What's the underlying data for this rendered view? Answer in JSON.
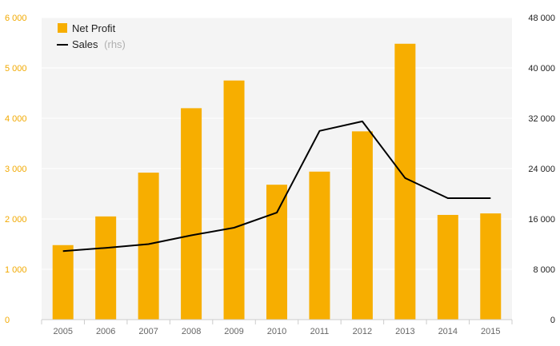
{
  "chart_data": {
    "type": "bar",
    "categories": [
      "2005",
      "2006",
      "2007",
      "2008",
      "2009",
      "2010",
      "2011",
      "2012",
      "2013",
      "2014",
      "2015"
    ],
    "series": [
      {
        "name": "Net Profit",
        "type": "bar",
        "axis": "left",
        "color": "#f7ae00",
        "values": [
          1480,
          2050,
          2920,
          4200,
          4750,
          2680,
          2940,
          3740,
          5480,
          2080,
          2110
        ]
      },
      {
        "name": "Sales",
        "name_suffix": "(rhs)",
        "type": "line",
        "axis": "right",
        "color": "#000000",
        "values": [
          10900,
          11400,
          12000,
          13400,
          14600,
          17000,
          30000,
          31500,
          22500,
          19300,
          19300
        ]
      }
    ],
    "y_left": {
      "min": 0,
      "max": 6000,
      "ticks": [
        0,
        1000,
        2000,
        3000,
        4000,
        5000,
        6000
      ],
      "tick_labels": [
        "0",
        "1 000",
        "2 000",
        "3 000",
        "4 000",
        "5 000",
        "6 000"
      ],
      "color": "#f2a900"
    },
    "y_right": {
      "min": 0,
      "max": 48000,
      "ticks": [
        0,
        8000,
        16000,
        24000,
        32000,
        40000,
        48000
      ],
      "tick_labels": [
        "0",
        "8 000",
        "16 000",
        "24 000",
        "32 000",
        "40 000",
        "48 000"
      ],
      "color": "#222222"
    },
    "title": "",
    "xlabel": "",
    "ylabel": "",
    "grid": true,
    "legend": {
      "placement": "top-left"
    }
  }
}
